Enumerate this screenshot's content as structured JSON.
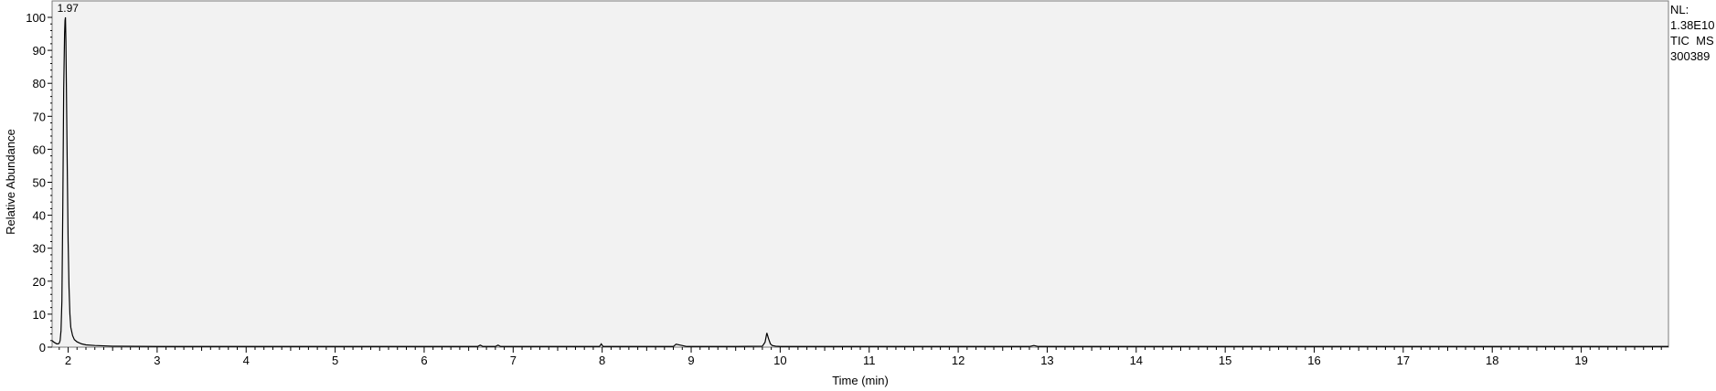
{
  "info": {
    "nl_label": "NL:",
    "nl_value": "1.38E10",
    "filter": "TIC  MS",
    "sample": "300389"
  },
  "chart_data": {
    "type": "line",
    "title": "",
    "xlabel": "Time (min)",
    "ylabel": "Relative Abundance",
    "xlim": [
      1.82,
      19.98
    ],
    "ylim": [
      0,
      100
    ],
    "xticks": [
      2,
      3,
      4,
      5,
      6,
      7,
      8,
      9,
      10,
      11,
      12,
      13,
      14,
      15,
      16,
      17,
      18,
      19
    ],
    "yticks": [
      0,
      10,
      20,
      30,
      40,
      50,
      60,
      70,
      80,
      90,
      100
    ],
    "grid": false,
    "peak_annotations": [
      {
        "x": 1.97,
        "y": 100,
        "label": "1.97"
      }
    ],
    "series": [
      {
        "x": [
          1.82,
          1.84,
          1.86,
          1.87,
          1.89,
          1.9,
          1.91,
          1.92,
          1.93,
          1.94,
          1.95,
          1.96,
          1.965,
          1.97,
          1.975,
          1.98,
          1.99,
          2.0,
          2.01,
          2.02,
          2.03,
          2.05,
          2.07,
          2.1,
          2.15,
          2.2,
          2.3,
          2.4,
          2.5,
          3.0,
          4.0,
          5.0,
          6.0,
          6.6,
          6.63,
          6.66,
          6.8,
          6.83,
          6.86,
          7.5,
          7.97,
          7.99,
          8.01,
          8.03,
          8.5,
          8.8,
          8.83,
          8.88,
          8.95,
          9.5,
          9.8,
          9.83,
          9.85,
          9.87,
          9.89,
          9.91,
          9.95,
          10.0,
          10.5,
          12.8,
          12.85,
          12.9,
          14.0,
          16.0,
          18.0,
          19.98
        ],
        "y": [
          2,
          1.5,
          1.2,
          1.0,
          1.0,
          1.2,
          2,
          5,
          14,
          42,
          78,
          95,
          99,
          100,
          93,
          80,
          55,
          32,
          18,
          10,
          6,
          3.5,
          2.3,
          1.6,
          1.0,
          0.7,
          0.5,
          0.4,
          0.3,
          0.2,
          0.2,
          0.2,
          0.2,
          0.2,
          0.6,
          0.2,
          0.2,
          0.6,
          0.2,
          0.2,
          0.2,
          1.0,
          0.2,
          0.2,
          0.2,
          0.2,
          0.9,
          0.6,
          0.2,
          0.2,
          0.3,
          1.5,
          4.3,
          2.5,
          1.0,
          0.5,
          0.3,
          0.2,
          0.2,
          0.2,
          0.5,
          0.2,
          0.2,
          0.2,
          0.2,
          0.2
        ]
      }
    ]
  }
}
